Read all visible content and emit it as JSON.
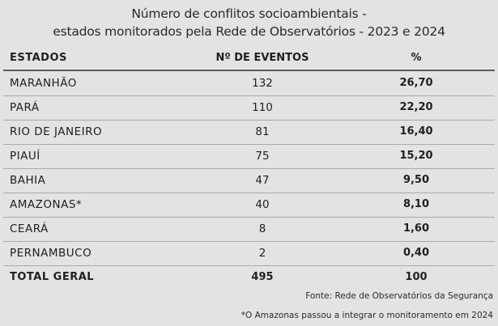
{
  "chart_data": {
    "type": "table",
    "title_lines": [
      "Número de conflitos socioambientais -",
      "estados monitorados pela Rede de Observatórios - 2023 e 2024"
    ],
    "columns": [
      "ESTADOS",
      "Nº DE EVENTOS",
      "%"
    ],
    "rows": [
      [
        "MARANHÃO",
        "132",
        "26,70"
      ],
      [
        "PARÁ",
        "110",
        "22,20"
      ],
      [
        "RIO DE JANEIRO",
        "81",
        "16,40"
      ],
      [
        "PIAUÍ",
        "75",
        "15,20"
      ],
      [
        "BAHIA",
        "47",
        "9,50"
      ],
      [
        "AMAZONAS*",
        "40",
        "8,10"
      ],
      [
        "CEARÁ",
        "8",
        "1,60"
      ],
      [
        "PERNAMBUCO",
        "2",
        "0,40"
      ]
    ],
    "total": [
      "TOTAL GERAL",
      "495",
      "100"
    ],
    "source": "Fonte: Rede de Observatórios da Segurança",
    "note": "*O Amazonas passou a integrar o monitoramento em 2024"
  }
}
